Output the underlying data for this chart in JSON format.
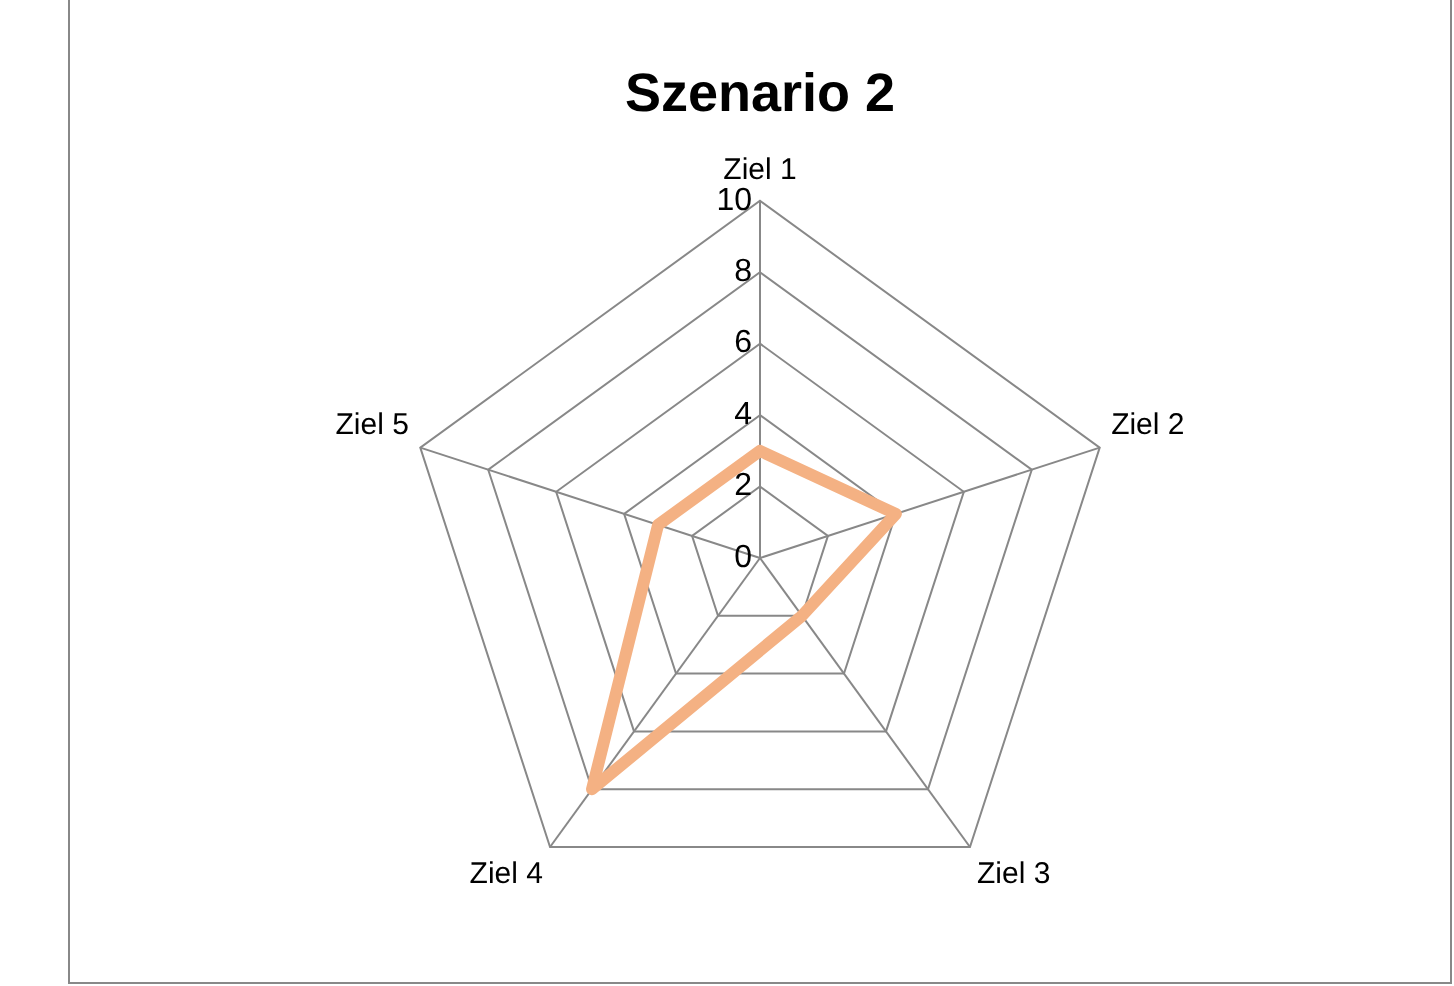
{
  "chart_data": {
    "type": "radar",
    "title": "Szenario 2",
    "categories": [
      "Ziel 1",
      "Ziel 2",
      "Ziel 3",
      "Ziel 4",
      "Ziel 5"
    ],
    "series": [
      {
        "color": "#f4b183",
        "values": [
          3,
          4,
          2,
          8,
          3
        ]
      }
    ],
    "ylim": [
      0,
      10
    ],
    "yticks": [
      0,
      2,
      4,
      6,
      8,
      10
    ],
    "grid": true,
    "legend": false,
    "marker": "none",
    "line_style": "solid"
  }
}
